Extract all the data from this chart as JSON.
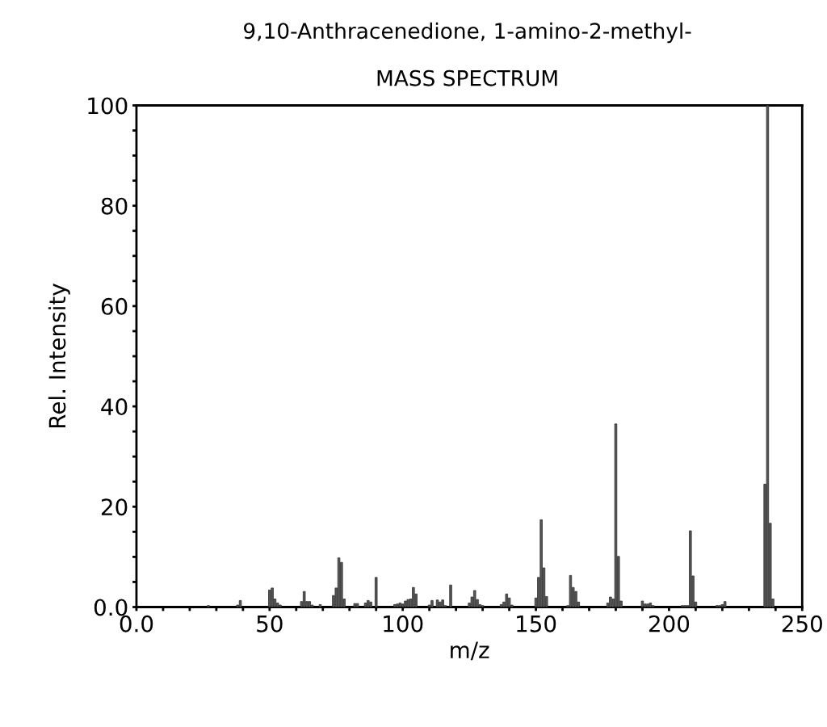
{
  "chart_data": {
    "type": "bar",
    "title": "9,10-Anthracenedione, 1-amino-2-methyl-",
    "subtitle": "MASS SPECTRUM",
    "xlabel": "m/z",
    "ylabel": "Rel. Intensity",
    "x": [
      27,
      38,
      39,
      50,
      51,
      52,
      53,
      54,
      62,
      63,
      64,
      65,
      66,
      69,
      74,
      75,
      76,
      77,
      78,
      82,
      83,
      86,
      87,
      88,
      90,
      97,
      98,
      99,
      100,
      101,
      102,
      103,
      104,
      105,
      110,
      111,
      113,
      114,
      115,
      116,
      118,
      125,
      126,
      127,
      128,
      129,
      130,
      137,
      138,
      139,
      140,
      141,
      150,
      151,
      152,
      153,
      154,
      162,
      163,
      164,
      165,
      166,
      177,
      178,
      179,
      180,
      181,
      182,
      190,
      191,
      192,
      193,
      194,
      205,
      206,
      207,
      208,
      209,
      210,
      218,
      219,
      220,
      221,
      236,
      237,
      238,
      239
    ],
    "values": [
      0.3,
      0.4,
      1.3,
      3.4,
      3.8,
      1.6,
      0.8,
      0.4,
      1.1,
      3.1,
      1.1,
      1.1,
      0.4,
      0.5,
      2.3,
      3.8,
      9.8,
      8.9,
      1.6,
      0.7,
      0.7,
      0.8,
      1.3,
      1.0,
      5.9,
      0.5,
      0.6,
      0.8,
      0.6,
      1.2,
      1.5,
      1.6,
      3.9,
      2.6,
      0.4,
      1.3,
      1.4,
      1.0,
      1.4,
      0.3,
      4.4,
      0.8,
      2.0,
      3.3,
      1.5,
      0.5,
      0.3,
      0.5,
      1.0,
      2.6,
      1.8,
      0.4,
      1.8,
      5.9,
      17.4,
      7.8,
      2.1,
      0.3,
      6.3,
      3.9,
      3.1,
      1.0,
      0.8,
      2.0,
      1.6,
      36.5,
      10.1,
      1.2,
      1.2,
      0.6,
      0.6,
      0.8,
      0.3,
      0.3,
      0.3,
      0.3,
      15.2,
      6.2,
      1.0,
      0.3,
      0.3,
      0.5,
      1.1,
      24.5,
      100,
      16.7,
      1.6
    ],
    "color": "#555555",
    "xlim": [
      0,
      250
    ],
    "ylim": [
      0,
      100
    ],
    "xticks": [
      {
        "value": 0,
        "label": "0.0"
      },
      {
        "value": 10,
        "label": null
      },
      {
        "value": 20,
        "label": null
      },
      {
        "value": 30,
        "label": null
      },
      {
        "value": 40,
        "label": null
      },
      50,
      {
        "value": 60,
        "label": null
      },
      {
        "value": 70,
        "label": null
      },
      {
        "value": 80,
        "label": null
      },
      {
        "value": 90,
        "label": null
      },
      100,
      {
        "value": 110,
        "label": null
      },
      {
        "value": 120,
        "label": null
      },
      {
        "value": 130,
        "label": null
      },
      {
        "value": 140,
        "label": null
      },
      150,
      {
        "value": 160,
        "label": null
      },
      {
        "value": 170,
        "label": null
      },
      {
        "value": 180,
        "label": null
      },
      {
        "value": 190,
        "label": null
      },
      200,
      {
        "value": 210,
        "label": null
      },
      {
        "value": 220,
        "label": null
      },
      {
        "value": 230,
        "label": null
      },
      {
        "value": 240,
        "label": null
      },
      250
    ],
    "yticks": [
      {
        "value": 0,
        "label": "0.0"
      },
      {
        "value": 5,
        "label": null
      },
      {
        "value": 10,
        "label": null
      },
      {
        "value": 15,
        "label": null
      },
      20,
      {
        "value": 25,
        "label": null
      },
      {
        "value": 30,
        "label": null
      },
      {
        "value": 35,
        "label": null
      },
      40,
      {
        "value": 45,
        "label": null
      },
      {
        "value": 50,
        "label": null
      },
      {
        "value": 55,
        "label": null
      },
      60,
      {
        "value": 65,
        "label": null
      },
      {
        "value": 70,
        "label": null
      },
      {
        "value": 75,
        "label": null
      },
      80,
      {
        "value": 85,
        "label": null
      },
      {
        "value": 90,
        "label": null
      },
      {
        "value": 95,
        "label": null
      },
      100
    ],
    "grid": false
  }
}
